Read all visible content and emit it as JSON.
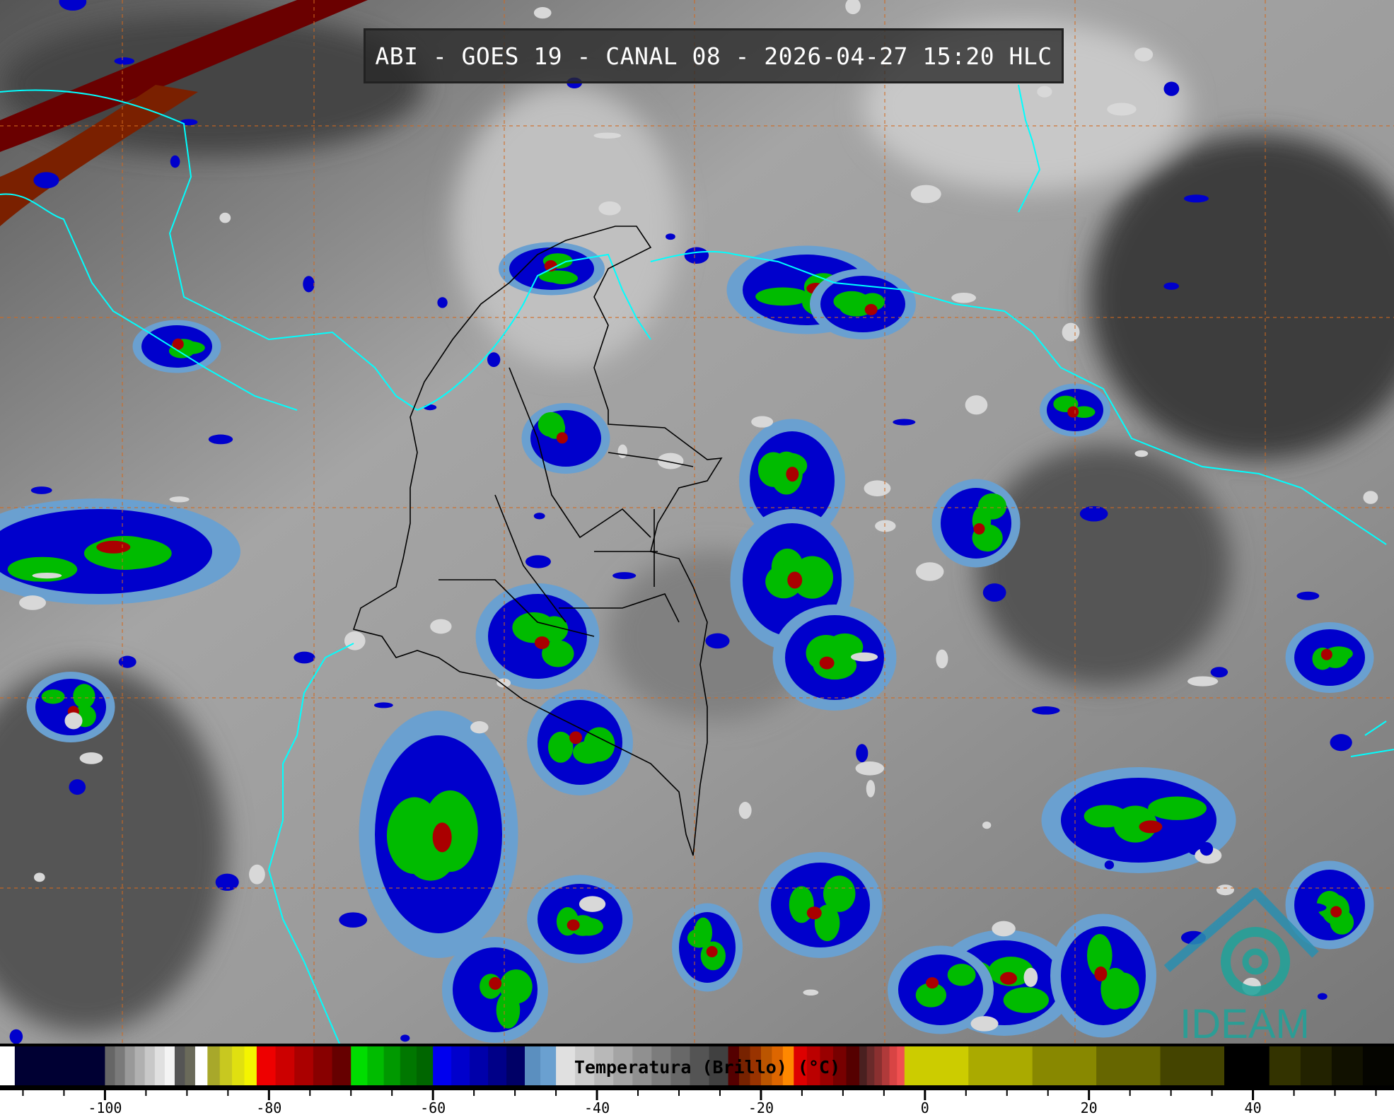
{
  "title": "ABI - GOES 19 - CANAL 08 - 2026-04-27 15:20 HLC",
  "logo_text": "IDEAM",
  "colors": {
    "background_gray": "#8a8a8a",
    "coastline": "#00ffff",
    "borders": "#000000",
    "graticule": "#d2691e",
    "logo": "#1fa39a"
  },
  "colorbar": {
    "label": "Temperatura (Brillo) (°C)",
    "range": [
      -112.8,
      57.2
    ],
    "ticks": [
      "-100",
      "-80",
      "-60",
      "-40",
      "-20",
      "0",
      "20",
      "40"
    ],
    "tick_values": [
      -100,
      -80,
      -60,
      -40,
      -20,
      0,
      20,
      40
    ],
    "minor_step": 5,
    "segments": [
      {
        "from": -112.8,
        "to": -111.0,
        "colors": [
          "#ffffff"
        ]
      },
      {
        "from": -111.0,
        "to": -100.0,
        "colors": [
          "#000033"
        ]
      },
      {
        "from": -100.0,
        "to": -91.5,
        "colors": [
          "#666666",
          "#7a7a7a",
          "#999999",
          "#b0b0b0",
          "#c8c8c8",
          "#e0e0e0",
          "#f4f4f4"
        ]
      },
      {
        "from": -91.5,
        "to": -89.0,
        "colors": [
          "#555555",
          "#6a6a5a"
        ]
      },
      {
        "from": -89.0,
        "to": -87.5,
        "colors": [
          "#ffffff"
        ]
      },
      {
        "from": -87.5,
        "to": -81.5,
        "colors": [
          "#a8a82a",
          "#c8c820",
          "#e0e010",
          "#f4f400"
        ]
      },
      {
        "from": -81.5,
        "to": -70.0,
        "colors": [
          "#ee0000",
          "#cc0000",
          "#aa0000",
          "#880000",
          "#660000"
        ]
      },
      {
        "from": -70.0,
        "to": -60.0,
        "colors": [
          "#00dd00",
          "#00bb00",
          "#009900",
          "#007700",
          "#006600"
        ]
      },
      {
        "from": -60.0,
        "to": -48.8,
        "colors": [
          "#0000ee",
          "#0000cc",
          "#0000aa",
          "#000088",
          "#000066"
        ]
      },
      {
        "from": -48.8,
        "to": -45.0,
        "colors": [
          "#5b8fbf",
          "#6aa0d0"
        ]
      },
      {
        "from": -45.0,
        "to": -24.0,
        "colors": [
          "#e0e0e0",
          "#cccccc",
          "#b8b8b8",
          "#a4a4a4",
          "#909090",
          "#7c7c7c",
          "#686868",
          "#545454",
          "#404040"
        ]
      },
      {
        "from": -24.0,
        "to": -16.0,
        "colors": [
          "#550000",
          "#772200",
          "#993300",
          "#bb5500",
          "#dd6600",
          "#ff8800"
        ]
      },
      {
        "from": -16.0,
        "to": -8.0,
        "colors": [
          "#dd0000",
          "#bb0000",
          "#990000",
          "#770000",
          "#550000"
        ]
      },
      {
        "from": -8.0,
        "to": -2.5,
        "colors": [
          "#4a2020",
          "#6a2a2a",
          "#8a3030",
          "#b03a3a",
          "#d84444",
          "#f05050"
        ]
      },
      {
        "from": -2.5,
        "to": 36.5,
        "colors": [
          "#cccc00",
          "#aaaa00",
          "#888800",
          "#666600",
          "#444400"
        ]
      },
      {
        "from": 36.5,
        "to": 42.0,
        "colors": [
          "#000000"
        ]
      },
      {
        "from": 42.0,
        "to": 57.2,
        "colors": [
          "#333300",
          "#222200",
          "#111100",
          "#050500"
        ]
      }
    ]
  }
}
